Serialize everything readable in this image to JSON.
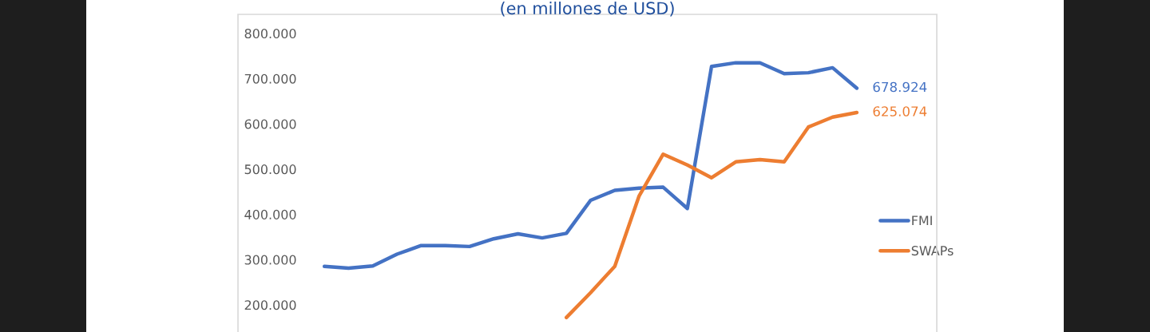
{
  "chart_data": {
    "type": "line",
    "subtitle": "(en millones de USD)",
    "categories": [
      null,
      null,
      null,
      null,
      null,
      null,
      null,
      null,
      null,
      null,
      null,
      null,
      null,
      null,
      null,
      null,
      null,
      null,
      null,
      null,
      null,
      null,
      null
    ],
    "series": [
      {
        "name": "FMI",
        "color": "#4472c4",
        "values": [
          285000,
          281000,
          286000,
          312000,
          331000,
          331000,
          329000,
          346000,
          357000,
          348000,
          358000,
          431000,
          453000,
          458000,
          460000,
          413000,
          727000,
          735000,
          735000,
          711000,
          713000,
          724000,
          678924
        ],
        "value_labels": [
          null,
          null,
          null,
          null,
          null,
          null,
          null,
          null,
          null,
          null,
          null,
          null,
          null,
          null,
          null,
          null,
          null,
          null,
          null,
          null,
          null,
          null,
          "678.924"
        ]
      },
      {
        "name": "SWAPs",
        "color": "#ed7d31",
        "values": [
          null,
          null,
          null,
          null,
          null,
          null,
          null,
          null,
          null,
          null,
          172000,
          227000,
          285000,
          440000,
          533000,
          509000,
          481000,
          516000,
          521000,
          516000,
          593000,
          615000,
          625074
        ],
        "value_labels": [
          null,
          null,
          null,
          null,
          null,
          null,
          null,
          null,
          null,
          null,
          null,
          null,
          null,
          null,
          null,
          null,
          null,
          null,
          null,
          null,
          null,
          null,
          "625.074"
        ]
      }
    ],
    "ylim": [
      140000,
      842000
    ],
    "yticks": [
      {
        "value": 200000,
        "label": "200.000"
      },
      {
        "value": 300000,
        "label": "300.000"
      },
      {
        "value": 400000,
        "label": "400.000"
      },
      {
        "value": 500000,
        "label": "500.000"
      },
      {
        "value": 600000,
        "label": "600.000"
      },
      {
        "value": 700000,
        "label": "700.000"
      },
      {
        "value": 800000,
        "label": "800.000"
      }
    ],
    "grid": false,
    "legend": "right",
    "marker": "none",
    "line_style": "solid"
  }
}
